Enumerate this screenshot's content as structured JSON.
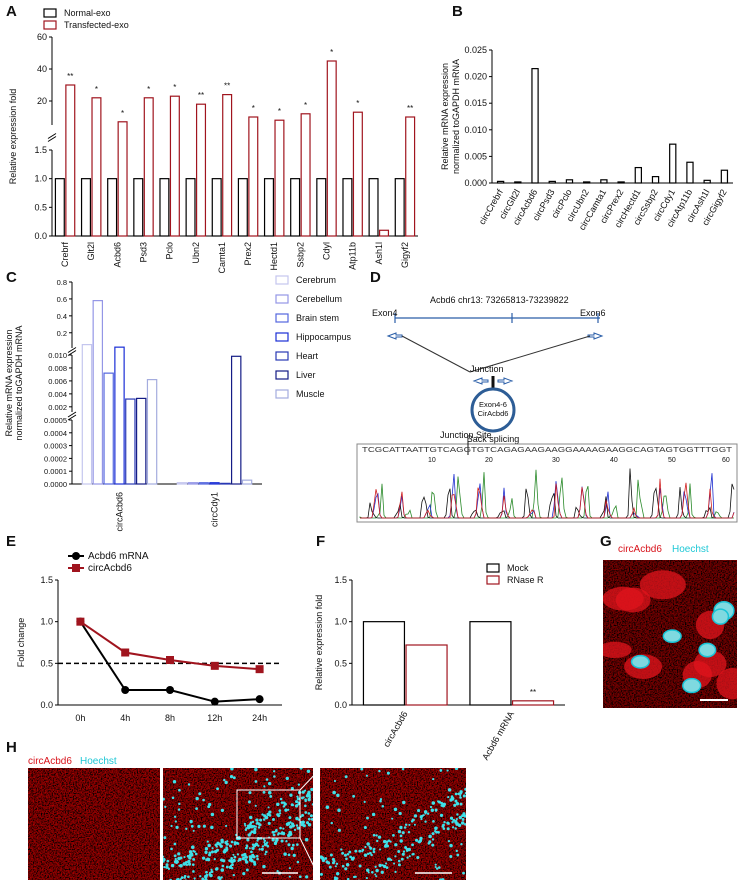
{
  "panels": [
    "A",
    "B",
    "C",
    "D",
    "E",
    "F",
    "G",
    "H"
  ],
  "chart_data": [
    {
      "type": "bar",
      "ylabel": "Relative expression fold",
      "categories": [
        "Crebrf",
        "Glt2l",
        "Acbd6",
        "Psd3",
        "Pclo",
        "Ubn2",
        "Camta1",
        "Prex2",
        "Hectd1",
        "Ssbp2",
        "Cdyl",
        "Atp11b",
        "Ash1l",
        "Gigyf2"
      ],
      "series": [
        {
          "name": "Normal-exo",
          "color": "#000000",
          "values": [
            1,
            1,
            1,
            1,
            1,
            1,
            1,
            1,
            1,
            1,
            1,
            1,
            1,
            1
          ]
        },
        {
          "name": "Transfected-exo",
          "color": "#a0141e",
          "values": [
            30,
            22,
            7,
            22,
            23,
            18,
            24,
            10,
            8,
            12,
            45,
            13,
            0.1,
            10
          ],
          "significance": [
            "**",
            "*",
            "*",
            "*",
            "*",
            "**",
            "**",
            "*",
            "*",
            "*",
            "*",
            "*",
            null,
            "**"
          ]
        }
      ],
      "ylim": [
        0,
        60
      ],
      "ybreaks": [
        [
          1.5,
          5
        ]
      ],
      "yticks": [
        {
          "value": 0,
          "label": "0.0"
        },
        0.5,
        {
          "value": 1,
          "label": "1.0"
        },
        1.5,
        20,
        40,
        60
      ],
      "legend": "upper left"
    },
    {
      "type": "bar",
      "ylabel": [
        "Relative mRNA expression",
        "normalized toGAPDH mRNA"
      ],
      "categories": [
        "circCrebrf",
        "circGlt2l",
        "circAcbd6",
        "circPsd3",
        "circPclo",
        "circUbn2",
        "circCamta1",
        "circPrex2",
        "circHectd1",
        "circSsbp2",
        "circCdy1",
        "circAtp11b",
        "circAsh1l",
        "circGigyf2"
      ],
      "values": [
        0.0003,
        0.0002,
        0.0215,
        0.0003,
        0.0006,
        0.0002,
        0.0006,
        0.0002,
        0.0029,
        0.0012,
        0.0073,
        0.0039,
        0.0005,
        0.0024
      ],
      "color": "#000000",
      "ylim": [
        0,
        0.025
      ],
      "yticks": [
        {
          "value": 0,
          "label": "0.000"
        },
        0.005,
        {
          "value": 0.01,
          "label": "0.010"
        },
        0.015,
        {
          "value": 0.02,
          "label": "0.020"
        },
        0.025
      ]
    },
    {
      "type": "bar",
      "ylabel": [
        "Relative mRNA expression",
        "normalized toGAPDH mRNA"
      ],
      "categories": [
        "circAcbd6",
        "circCdy1"
      ],
      "series": [
        {
          "name": "Cerebrum",
          "color": "#c4c6ee",
          "values": [
            0.06,
            1e-05
          ]
        },
        {
          "name": "Cerebellum",
          "color": "#9496e6",
          "values": [
            0.58,
            1e-05
          ]
        },
        {
          "name": "Brain stem",
          "color": "#5466de",
          "values": [
            0.0072,
            1e-05
          ]
        },
        {
          "name": "Hippocampus",
          "color": "#1a2ed6",
          "values": [
            0.03,
            1e-05
          ]
        },
        {
          "name": "Heart",
          "color": "#2838b4",
          "values": [
            0.0032,
            5e-06
          ]
        },
        {
          "name": "Liver",
          "color": "#141c86",
          "values": [
            0.0033,
            0.0098
          ]
        },
        {
          "name": "Muscle",
          "color": "#a4acde",
          "values": [
            0.0062,
            3e-05
          ]
        }
      ],
      "ylim": [
        0,
        0.8
      ],
      "ybreaks": [
        [
          0.0005,
          0.0012
        ],
        [
          0.01,
          0.02
        ]
      ],
      "yticks": [
        {
          "value": 0,
          "label": "0.0000"
        },
        0.0001,
        0.0002,
        0.0003,
        0.0004,
        0.0005,
        0.002,
        0.004,
        0.006,
        0.008,
        {
          "value": 0.01,
          "label": "0.010"
        },
        0.2,
        0.4,
        0.6,
        0.8
      ],
      "legend": "right"
    },
    {
      "type": "line",
      "ylabel": "Fold change",
      "categories": [
        "0h",
        "4h",
        "8h",
        "12h",
        "24h"
      ],
      "series": [
        {
          "name": "Acbd6 mRNA",
          "color": "#000000",
          "marker": "circle",
          "values": [
            1.0,
            0.18,
            0.18,
            0.04,
            0.07
          ]
        },
        {
          "name": "circAcbd6",
          "color": "#a0141e",
          "marker": "square",
          "values": [
            1.0,
            0.63,
            0.54,
            0.47,
            0.43
          ]
        }
      ],
      "ylim": [
        0,
        1.5
      ],
      "yticks": [
        {
          "value": 0,
          "label": "0.0"
        },
        0.5,
        {
          "value": 1,
          "label": "1.0"
        },
        1.5
      ],
      "reference_line": 0.5,
      "legend": "upper left"
    },
    {
      "type": "bar",
      "ylabel": "Relative expression fold",
      "categories": [
        "circAcbd6",
        "Acbd6 mRNA"
      ],
      "series": [
        {
          "name": "Mock",
          "color": "#000000",
          "values": [
            1.0,
            1.0
          ]
        },
        {
          "name": "RNase R",
          "color": "#a0141e",
          "values": [
            0.72,
            0.05
          ],
          "significance": [
            null,
            "**"
          ]
        }
      ],
      "ylim": [
        0,
        1.5
      ],
      "yticks": [
        {
          "value": 0,
          "label": "0.0"
        },
        0.5,
        {
          "value": 1,
          "label": "1.0"
        },
        1.5
      ],
      "legend": "upper right"
    }
  ],
  "diagram": {
    "title": "Acbd6 chr13: 73265813-73239822",
    "exon_left": "Exon4",
    "exon_right": "Exon6",
    "junction": "Junction",
    "circle_lines": [
      "Exon4-6",
      "CirAcbd6"
    ],
    "back_splicing": "Back splicing",
    "junction_site": "Junction Site",
    "sequence": "TCGCATTAATTGTCAGGTGTCAGAGAAGAAGGAAAAGAAGGCAGTAGTGGTTTGGT",
    "positions": [
      10,
      20,
      30,
      40,
      50,
      60
    ]
  },
  "images": {
    "G": {
      "stains": [
        "circAcbd6",
        "Hoechst"
      ]
    },
    "H": {
      "stains": [
        "circAcbd6",
        "Hoechst"
      ]
    }
  }
}
